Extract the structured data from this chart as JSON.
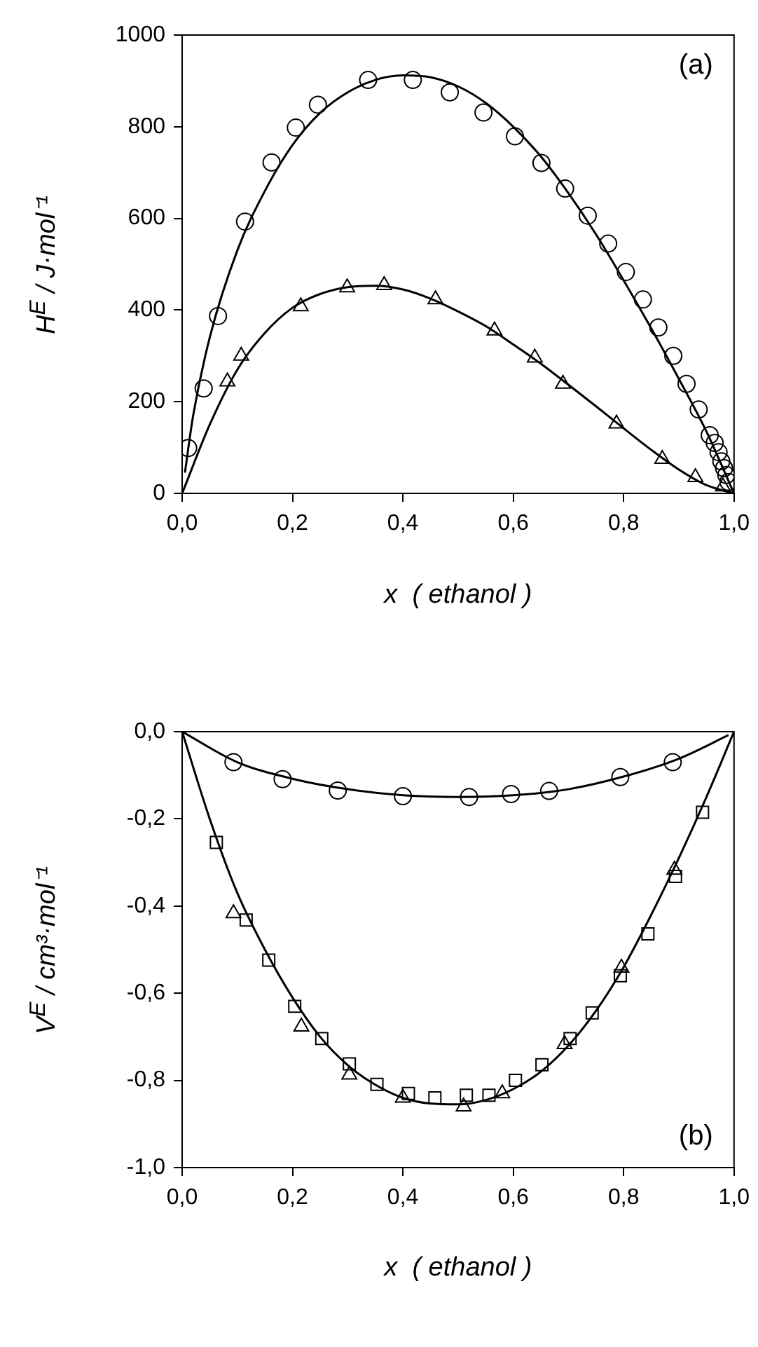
{
  "chart_data": [
    {
      "type": "scatter",
      "xlabel": "x  ( ethanol )",
      "ylabel": "H$^{E}$  / J·mol⁻¹",
      "annotations": [
        "(a)"
      ],
      "xlim": [
        0,
        1
      ],
      "xticks": [
        {
          "value": 0,
          "label": "0,0"
        },
        {
          "value": 0.2,
          "label": "0,2"
        },
        {
          "value": 0.4,
          "label": "0,4"
        },
        {
          "value": 0.6,
          "label": "0,6"
        },
        {
          "value": 0.8,
          "label": "0,8"
        },
        {
          "value": 1,
          "label": "1,0"
        }
      ],
      "ylim": [
        0,
        1000
      ],
      "yticks": [
        0,
        200,
        400,
        600,
        800,
        1000
      ],
      "series": [
        {
          "type": "scatter",
          "marker": "circle",
          "color": "#000000",
          "x": [
            0.011,
            0.039,
            0.065,
            0.114,
            0.162,
            0.206,
            0.246,
            0.337,
            0.418,
            0.485,
            0.546,
            0.603,
            0.651,
            0.694,
            0.735,
            0.772,
            0.804,
            0.835,
            0.863,
            0.89,
            0.914,
            0.936,
            0.956,
            0.965,
            0.972,
            0.977,
            0.982,
            0.986,
            0.99
          ],
          "values": [
            99,
            229,
            387,
            593,
            722,
            798,
            848,
            902,
            902,
            875,
            831,
            779,
            721,
            665,
            606,
            545,
            483,
            423,
            362,
            300,
            239,
            183,
            127,
            110,
            90,
            70,
            55,
            40,
            25
          ]
        },
        {
          "type": "scatter",
          "marker": "triangle",
          "color": "#000000",
          "x": [
            0.082,
            0.107,
            0.215,
            0.299,
            0.366,
            0.459,
            0.566,
            0.639,
            0.69,
            0.787,
            0.87,
            0.93,
            0.98
          ],
          "values": [
            244,
            300,
            408,
            449,
            454,
            423,
            355,
            296,
            239,
            152,
            75,
            35,
            15
          ]
        },
        {
          "type": "line",
          "marker": "none",
          "color": "#000000",
          "x": [
            0.005,
            0.02,
            0.05,
            0.1,
            0.15,
            0.2,
            0.25,
            0.3,
            0.35,
            0.4,
            0.45,
            0.5,
            0.55,
            0.6,
            0.65,
            0.7,
            0.75,
            0.8,
            0.85,
            0.9,
            0.95,
            1
          ],
          "values": [
            45,
            170,
            340,
            530,
            660,
            760,
            830,
            875,
            902,
            912,
            908,
            888,
            852,
            800,
            735,
            655,
            565,
            465,
            360,
            250,
            135,
            0
          ]
        },
        {
          "type": "line",
          "marker": "none",
          "color": "#000000",
          "x": [
            0,
            0.05,
            0.1,
            0.15,
            0.2,
            0.25,
            0.3,
            0.35,
            0.4,
            0.45,
            0.5,
            0.55,
            0.6,
            0.65,
            0.7,
            0.75,
            0.8,
            0.85,
            0.9,
            0.95,
            1
          ],
          "values": [
            0,
            150,
            270,
            350,
            405,
            435,
            450,
            453,
            445,
            425,
            397,
            365,
            325,
            283,
            237,
            190,
            142,
            95,
            52,
            18,
            0
          ]
        }
      ]
    },
    {
      "type": "scatter",
      "xlabel": "x  ( ethanol )",
      "ylabel": "V$^{E}$  / cm³·mol⁻¹",
      "annotations": [
        "(b)"
      ],
      "xlim": [
        0,
        1
      ],
      "xticks": [
        {
          "value": 0,
          "label": "0,0"
        },
        {
          "value": 0.2,
          "label": "0,2"
        },
        {
          "value": 0.4,
          "label": "0,4"
        },
        {
          "value": 0.6,
          "label": "0,6"
        },
        {
          "value": 0.8,
          "label": "0,8"
        },
        {
          "value": 1,
          "label": "1,0"
        }
      ],
      "ylim": [
        -1,
        0
      ],
      "yticks": [
        {
          "value": -1,
          "label": "-1,0"
        },
        {
          "value": -0.8,
          "label": "-0,8"
        },
        {
          "value": -0.6,
          "label": "-0,6"
        },
        {
          "value": -0.4,
          "label": "-0,4"
        },
        {
          "value": -0.2,
          "label": "-0,2"
        },
        {
          "value": 0,
          "label": "0,0"
        }
      ],
      "series": [
        {
          "type": "scatter",
          "marker": "circle",
          "color": "#000000",
          "x": [
            0.093,
            0.182,
            0.282,
            0.4,
            0.52,
            0.596,
            0.665,
            0.794,
            0.889
          ],
          "values": [
            -0.07,
            -0.109,
            -0.135,
            -0.148,
            -0.15,
            -0.143,
            -0.136,
            -0.104,
            -0.07
          ]
        },
        {
          "type": "scatter",
          "marker": "triangle",
          "color": "#000000",
          "x": [
            0.093,
            0.216,
            0.303,
            0.4,
            0.51,
            0.58,
            0.693,
            0.796,
            0.892
          ],
          "values": [
            -0.417,
            -0.677,
            -0.787,
            -0.84,
            -0.86,
            -0.83,
            -0.717,
            -0.542,
            -0.317
          ]
        },
        {
          "type": "scatter",
          "marker": "square",
          "color": "#000000",
          "x": [
            0.062,
            0.116,
            0.157,
            0.204,
            0.253,
            0.303,
            0.353,
            0.41,
            0.458,
            0.515,
            0.556,
            0.604,
            0.652,
            0.703,
            0.743,
            0.794,
            0.844,
            0.894,
            0.943
          ],
          "values": [
            -0.254,
            -0.432,
            -0.524,
            -0.63,
            -0.704,
            -0.762,
            -0.809,
            -0.83,
            -0.84,
            -0.834,
            -0.834,
            -0.8,
            -0.764,
            -0.704,
            -0.645,
            -0.56,
            -0.464,
            -0.332,
            -0.185
          ]
        },
        {
          "type": "line",
          "marker": "none",
          "color": "#000000",
          "x": [
            0,
            0.1,
            0.2,
            0.3,
            0.4,
            0.5,
            0.6,
            0.7,
            0.8,
            0.9,
            0.99
          ],
          "values": [
            0,
            -0.07,
            -0.108,
            -0.132,
            -0.146,
            -0.15,
            -0.146,
            -0.132,
            -0.103,
            -0.062,
            -0.008
          ]
        },
        {
          "type": "line",
          "marker": "none",
          "color": "#000000",
          "x": [
            0,
            0.05,
            0.1,
            0.15,
            0.2,
            0.25,
            0.3,
            0.35,
            0.4,
            0.45,
            0.5,
            0.55,
            0.6,
            0.65,
            0.7,
            0.75,
            0.8,
            0.85,
            0.9,
            0.95,
            1
          ],
          "values": [
            0,
            -0.2,
            -0.37,
            -0.5,
            -0.61,
            -0.7,
            -0.765,
            -0.81,
            -0.84,
            -0.853,
            -0.855,
            -0.845,
            -0.82,
            -0.78,
            -0.72,
            -0.64,
            -0.54,
            -0.42,
            -0.29,
            -0.15,
            0
          ]
        }
      ]
    }
  ]
}
